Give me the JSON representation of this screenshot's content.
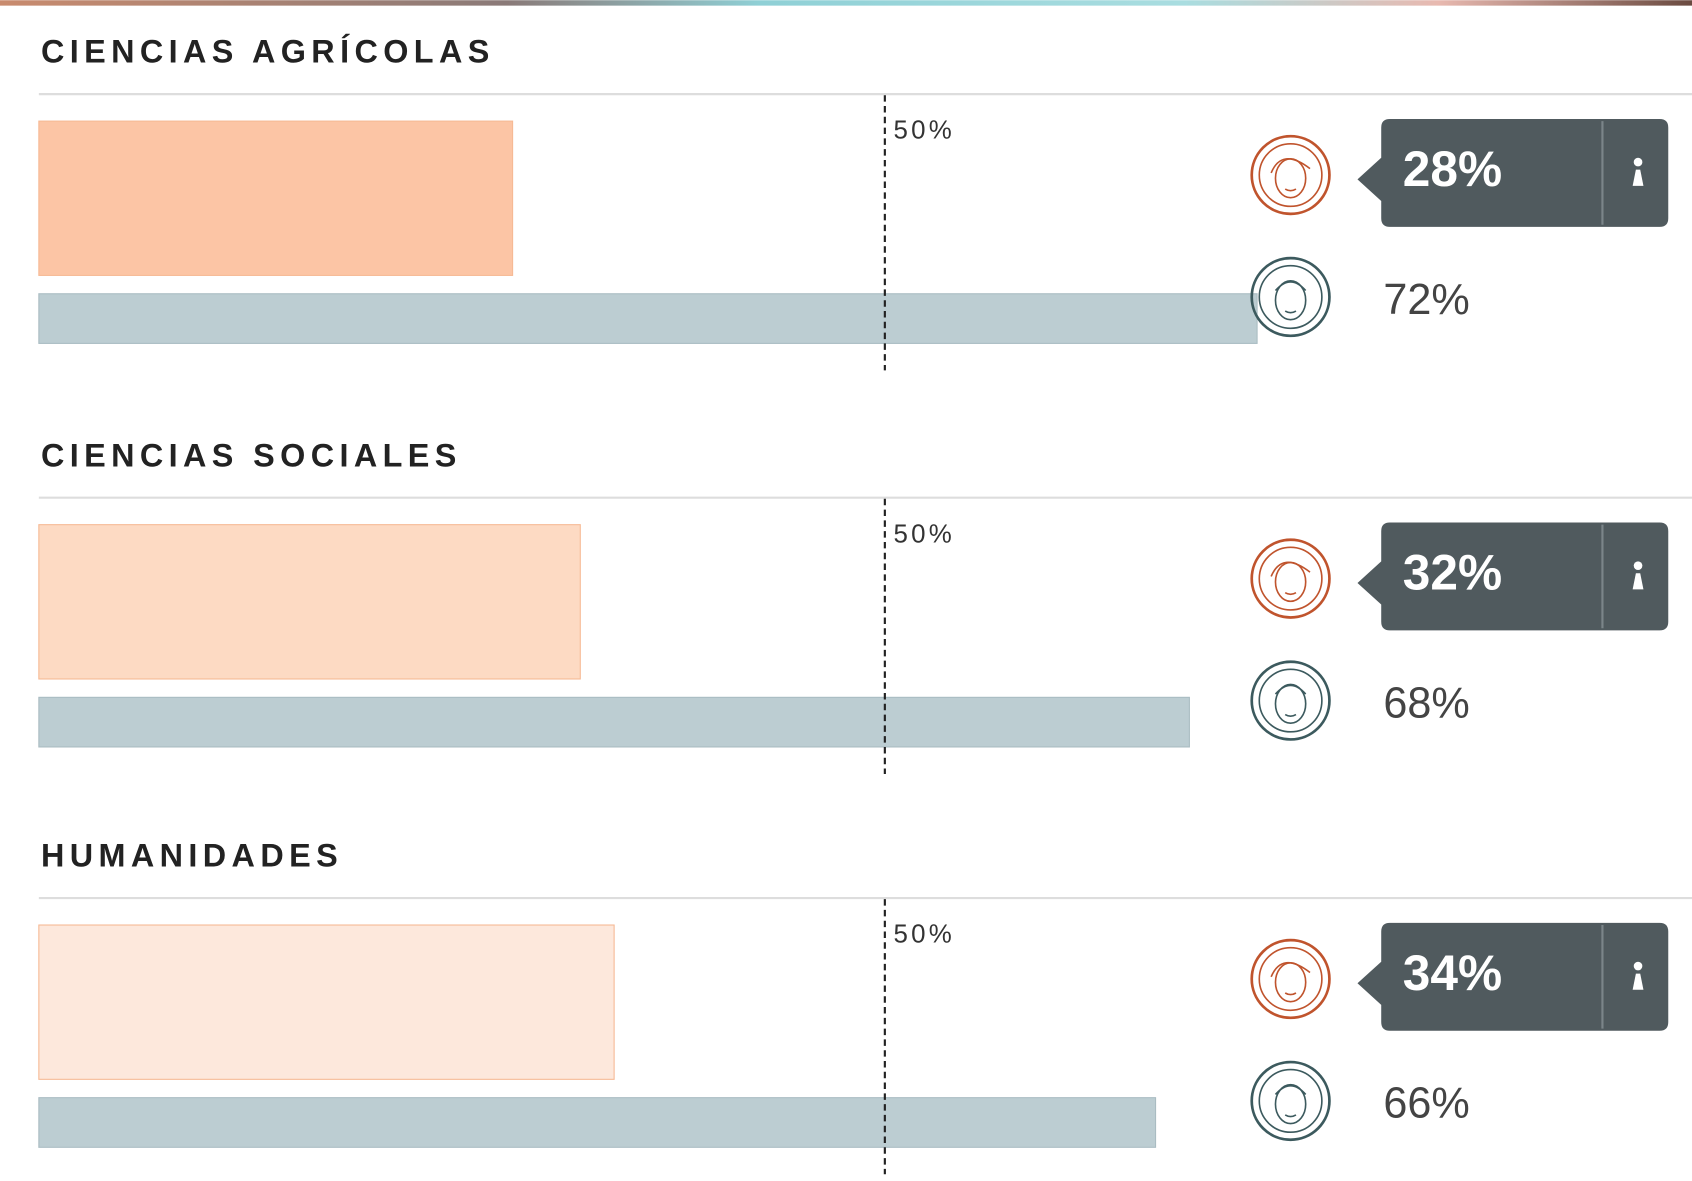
{
  "chart_data": [
    {
      "type": "bar",
      "title": "CIENCIAS AGRÍCOLAS",
      "xlim": [
        0,
        100
      ],
      "xticks": [
        {
          "value": 50,
          "label": "50%"
        }
      ],
      "series": [
        {
          "color": "#fcc5a5",
          "values": [
            28
          ],
          "value_labels": [
            "28%"
          ]
        },
        {
          "color": "#bccdd2",
          "values": [
            72
          ],
          "value_labels": [
            "72%"
          ]
        }
      ]
    },
    {
      "type": "bar",
      "title": "CIENCIAS SOCIALES",
      "xlim": [
        0,
        100
      ],
      "xticks": [
        {
          "value": 50,
          "label": "50%"
        }
      ],
      "series": [
        {
          "color": "#fddac3",
          "values": [
            32
          ],
          "value_labels": [
            "32%"
          ]
        },
        {
          "color": "#bccdd2",
          "values": [
            68
          ],
          "value_labels": [
            "68%"
          ]
        }
      ]
    },
    {
      "type": "bar",
      "title": "HUMANIDADES",
      "xlim": [
        0,
        100
      ],
      "xticks": [
        {
          "value": 50,
          "label": "50%"
        }
      ],
      "series": [
        {
          "color": "#fde8dc",
          "values": [
            34
          ],
          "value_labels": [
            "34%"
          ]
        },
        {
          "color": "#bccdd2",
          "values": [
            66
          ],
          "value_labels": [
            "66%"
          ]
        }
      ]
    }
  ]
}
